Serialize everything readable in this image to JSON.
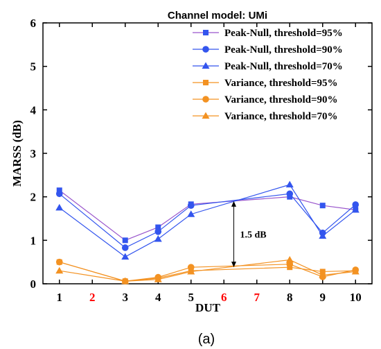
{
  "chart_data": {
    "type": "line",
    "title": "Channel model: UMi",
    "xlabel": "DUT",
    "ylabel": "MARSS (dB)",
    "caption": "(a)",
    "ylim": [
      0,
      6
    ],
    "yticks": [
      0,
      1,
      2,
      3,
      4,
      5,
      6
    ],
    "xlim": [
      0.5,
      10.5
    ],
    "x_ticks": [
      {
        "label": "1",
        "value": 1,
        "color": "#000000"
      },
      {
        "label": "2",
        "value": 2,
        "color": "#ff0000"
      },
      {
        "label": "3",
        "value": 3,
        "color": "#000000"
      },
      {
        "label": "4",
        "value": 4,
        "color": "#000000"
      },
      {
        "label": "5",
        "value": 5,
        "color": "#000000"
      },
      {
        "label": "6",
        "value": 6,
        "color": "#ff0000"
      },
      {
        "label": "7",
        "value": 7,
        "color": "#ff0000"
      },
      {
        "label": "8",
        "value": 8,
        "color": "#000000"
      },
      {
        "label": "9",
        "value": 9,
        "color": "#000000"
      },
      {
        "label": "10",
        "value": 10,
        "color": "#000000"
      }
    ],
    "legend_position": "top-right",
    "series": [
      {
        "name": "Peak-Null, threshold=95%",
        "marker": "square",
        "color": "#3355ee",
        "line_color": "#9955cc",
        "x": [
          1,
          3,
          4,
          5,
          8,
          9,
          10
        ],
        "y": [
          2.15,
          1.0,
          1.3,
          1.83,
          2.0,
          1.8,
          1.7
        ]
      },
      {
        "name": "Peak-Null, threshold=90%",
        "marker": "circle",
        "color": "#3355ee",
        "line_color": "#3355ee",
        "x": [
          1,
          3,
          4,
          5,
          8,
          9,
          10
        ],
        "y": [
          2.07,
          0.83,
          1.2,
          1.8,
          2.07,
          1.17,
          1.82
        ]
      },
      {
        "name": "Peak-Null, threshold=70%",
        "marker": "triangle",
        "color": "#3355ee",
        "line_color": "#3355ee",
        "x": [
          1,
          3,
          4,
          5,
          8,
          9,
          10
        ],
        "y": [
          1.75,
          0.62,
          1.03,
          1.6,
          2.28,
          1.1,
          1.7
        ]
      },
      {
        "name": "Variance, threshold=95%",
        "marker": "square",
        "color": "#f39222",
        "line_color": "#f39222",
        "x": [
          1,
          3,
          4,
          5,
          8,
          9,
          10
        ],
        "y": [
          0.5,
          0.06,
          0.13,
          0.3,
          0.38,
          0.28,
          0.3
        ]
      },
      {
        "name": "Variance, threshold=90%",
        "marker": "circle",
        "color": "#f39222",
        "line_color": "#f39222",
        "x": [
          1,
          3,
          4,
          5,
          8,
          9,
          10
        ],
        "y": [
          0.5,
          0.06,
          0.15,
          0.38,
          0.45,
          0.16,
          0.32
        ]
      },
      {
        "name": "Variance, threshold=70%",
        "marker": "triangle",
        "color": "#f39222",
        "line_color": "#f39222",
        "x": [
          1,
          3,
          4,
          5,
          8,
          9,
          10
        ],
        "y": [
          0.3,
          0.06,
          0.1,
          0.28,
          0.55,
          0.2,
          0.28
        ]
      }
    ],
    "annotation": {
      "text": "1.5 dB",
      "x": 6.3,
      "y_from": 0.38,
      "y_to": 1.9
    }
  }
}
